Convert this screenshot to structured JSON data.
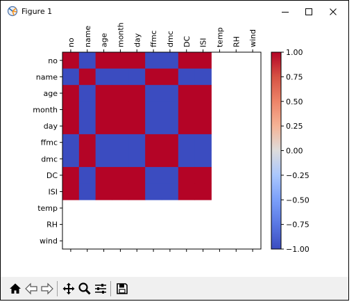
{
  "window": {
    "title": "Figure 1"
  },
  "toolbar": {
    "icons": [
      "home-icon",
      "back-arrow-icon",
      "forward-arrow-icon",
      "pan-icon",
      "zoom-icon",
      "configure-subplots-icon",
      "save-icon"
    ]
  },
  "chart_data": {
    "type": "heatmap",
    "variables": [
      "no",
      "name",
      "age",
      "month",
      "day",
      "ffmc",
      "dmc",
      "DC",
      "ISI",
      "temp",
      "RH",
      "wind"
    ],
    "matrix": [
      [
        1,
        -1,
        1,
        1,
        1,
        -1,
        -1,
        1,
        1,
        null,
        null,
        null
      ],
      [
        -1,
        1,
        -1,
        -1,
        -1,
        1,
        1,
        -1,
        -1,
        null,
        null,
        null
      ],
      [
        1,
        -1,
        1,
        1,
        1,
        -1,
        -1,
        1,
        1,
        null,
        null,
        null
      ],
      [
        1,
        -1,
        1,
        1,
        1,
        -1,
        -1,
        1,
        1,
        null,
        null,
        null
      ],
      [
        1,
        -1,
        1,
        1,
        1,
        -1,
        -1,
        1,
        1,
        null,
        null,
        null
      ],
      [
        -1,
        1,
        -1,
        -1,
        -1,
        1,
        1,
        -1,
        -1,
        null,
        null,
        null
      ],
      [
        -1,
        1,
        -1,
        -1,
        -1,
        1,
        1,
        -1,
        -1,
        null,
        null,
        null
      ],
      [
        1,
        -1,
        1,
        1,
        1,
        -1,
        -1,
        1,
        1,
        null,
        null,
        null
      ],
      [
        1,
        -1,
        1,
        1,
        1,
        -1,
        -1,
        1,
        1,
        null,
        null,
        null
      ],
      [
        null,
        null,
        null,
        null,
        null,
        null,
        null,
        null,
        null,
        null,
        null,
        null
      ],
      [
        null,
        null,
        null,
        null,
        null,
        null,
        null,
        null,
        null,
        null,
        null,
        null
      ],
      [
        null,
        null,
        null,
        null,
        null,
        null,
        null,
        null,
        null,
        null,
        null,
        null
      ]
    ],
    "colormap": "coolwarm",
    "color_low": "#3b4cc0",
    "color_high": "#b40426",
    "range": [
      -1,
      1
    ],
    "colorbar_ticks": [
      "1.00",
      "0.75",
      "0.50",
      "0.25",
      "0.00",
      "−0.25",
      "−0.50",
      "−0.75",
      "−1.00"
    ],
    "x_ticks_position": "top",
    "grid": false
  }
}
